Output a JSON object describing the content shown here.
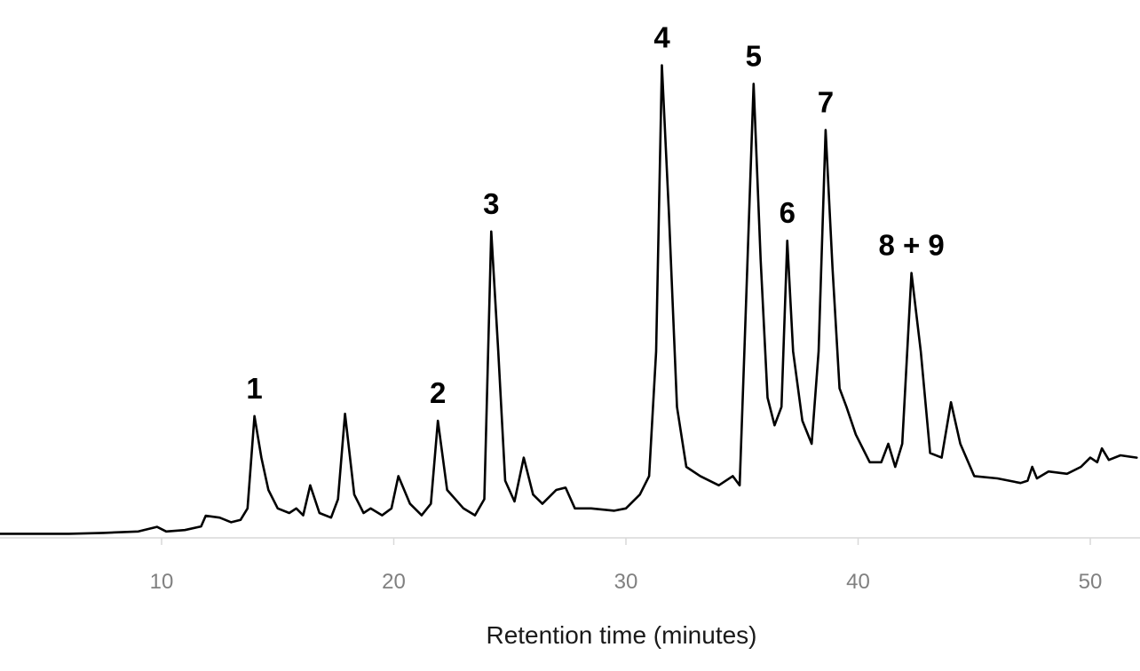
{
  "chart_data": {
    "type": "line",
    "title": "",
    "xlabel": "Retention time (minutes)",
    "ylabel": "",
    "xlim": [
      3,
      52
    ],
    "ylim": [
      0,
      100
    ],
    "grid": false,
    "x_ticks": [
      {
        "value": 10,
        "label": "10"
      },
      {
        "value": 20,
        "label": "20"
      },
      {
        "value": 30,
        "label": "30"
      },
      {
        "value": 40,
        "label": "40"
      },
      {
        "value": 50,
        "label": "50"
      }
    ],
    "series": [
      {
        "points": [
          [
            3,
            0.5
          ],
          [
            6,
            0.5
          ],
          [
            7.5,
            0.7
          ],
          [
            9,
            1.0
          ],
          [
            9.8,
            2.0
          ],
          [
            10.2,
            1.0
          ],
          [
            11,
            1.3
          ],
          [
            11.7,
            2.1
          ],
          [
            11.9,
            4.4
          ],
          [
            12.5,
            4.0
          ],
          [
            13.0,
            3.0
          ],
          [
            13.4,
            3.5
          ],
          [
            13.7,
            6.0
          ],
          [
            14.0,
            26.0
          ],
          [
            14.3,
            17.0
          ],
          [
            14.6,
            10.0
          ],
          [
            15.0,
            6.0
          ],
          [
            15.5,
            5.0
          ],
          [
            15.8,
            6.0
          ],
          [
            16.1,
            4.5
          ],
          [
            16.4,
            11.0
          ],
          [
            16.8,
            5.0
          ],
          [
            17.3,
            4.0
          ],
          [
            17.6,
            8.0
          ],
          [
            17.9,
            26.5
          ],
          [
            18.3,
            9.0
          ],
          [
            18.7,
            5.0
          ],
          [
            19.0,
            6.0
          ],
          [
            19.5,
            4.5
          ],
          [
            19.9,
            6.0
          ],
          [
            20.2,
            13.0
          ],
          [
            20.7,
            7.0
          ],
          [
            21.2,
            4.5
          ],
          [
            21.6,
            7.0
          ],
          [
            21.9,
            25.0
          ],
          [
            22.3,
            10.0
          ],
          [
            23.0,
            6.0
          ],
          [
            23.5,
            4.5
          ],
          [
            23.9,
            8.0
          ],
          [
            24.2,
            66.0
          ],
          [
            24.5,
            40.0
          ],
          [
            24.8,
            12.0
          ],
          [
            25.2,
            7.5
          ],
          [
            25.6,
            17.0
          ],
          [
            26.0,
            9.0
          ],
          [
            26.4,
            7.0
          ],
          [
            27.0,
            10.0
          ],
          [
            27.4,
            10.5
          ],
          [
            27.8,
            6.0
          ],
          [
            28.5,
            6.0
          ],
          [
            29.5,
            5.5
          ],
          [
            30.0,
            6.0
          ],
          [
            30.6,
            9.0
          ],
          [
            31.0,
            13.0
          ],
          [
            31.3,
            40.0
          ],
          [
            31.55,
            102.0
          ],
          [
            31.85,
            70.0
          ],
          [
            32.2,
            28.0
          ],
          [
            32.6,
            15.0
          ],
          [
            33.2,
            13.0
          ],
          [
            34.0,
            11.0
          ],
          [
            34.6,
            13.0
          ],
          [
            34.9,
            11.0
          ],
          [
            35.1,
            40.0
          ],
          [
            35.5,
            98.0
          ],
          [
            35.8,
            60.0
          ],
          [
            36.1,
            30.0
          ],
          [
            36.4,
            24.0
          ],
          [
            36.7,
            28.0
          ],
          [
            36.95,
            64.0
          ],
          [
            37.2,
            40.0
          ],
          [
            37.6,
            25.0
          ],
          [
            38.0,
            20.0
          ],
          [
            38.3,
            40.0
          ],
          [
            38.6,
            88.0
          ],
          [
            38.9,
            58.0
          ],
          [
            39.2,
            32.0
          ],
          [
            39.5,
            28.0
          ],
          [
            39.9,
            22.0
          ],
          [
            40.5,
            16.0
          ],
          [
            41.0,
            16.0
          ],
          [
            41.3,
            20.0
          ],
          [
            41.6,
            15.0
          ],
          [
            41.9,
            20.0
          ],
          [
            42.3,
            57.0
          ],
          [
            42.7,
            40.0
          ],
          [
            43.1,
            18.0
          ],
          [
            43.6,
            17.0
          ],
          [
            44.0,
            29.0
          ],
          [
            44.4,
            20.0
          ],
          [
            45.0,
            13.0
          ],
          [
            46.0,
            12.5
          ],
          [
            47.0,
            11.5
          ],
          [
            47.3,
            12.0
          ],
          [
            47.5,
            15.0
          ],
          [
            47.7,
            12.5
          ],
          [
            48.2,
            14.0
          ],
          [
            49.0,
            13.5
          ],
          [
            49.6,
            15.0
          ],
          [
            50.0,
            17.0
          ],
          [
            50.3,
            16.0
          ],
          [
            50.5,
            19.0
          ],
          [
            50.8,
            16.5
          ],
          [
            51.3,
            17.5
          ],
          [
            52.0,
            17.0
          ]
        ]
      }
    ],
    "annotations": [
      {
        "text": "1",
        "x": 14.0,
        "y": 26.0
      },
      {
        "text": "2",
        "x": 21.9,
        "y": 25.0
      },
      {
        "text": "3",
        "x": 24.2,
        "y": 66.0
      },
      {
        "text": "4",
        "x": 31.55,
        "y": 102.0
      },
      {
        "text": "5",
        "x": 35.5,
        "y": 98.0
      },
      {
        "text": "6",
        "x": 36.95,
        "y": 64.0
      },
      {
        "text": "7",
        "x": 38.6,
        "y": 88.0
      },
      {
        "text": "8 + 9",
        "x": 42.3,
        "y": 57.0
      }
    ],
    "colors": {
      "line": "#000000",
      "axis": "#d9d9d9",
      "tick_label": "#808080"
    }
  }
}
